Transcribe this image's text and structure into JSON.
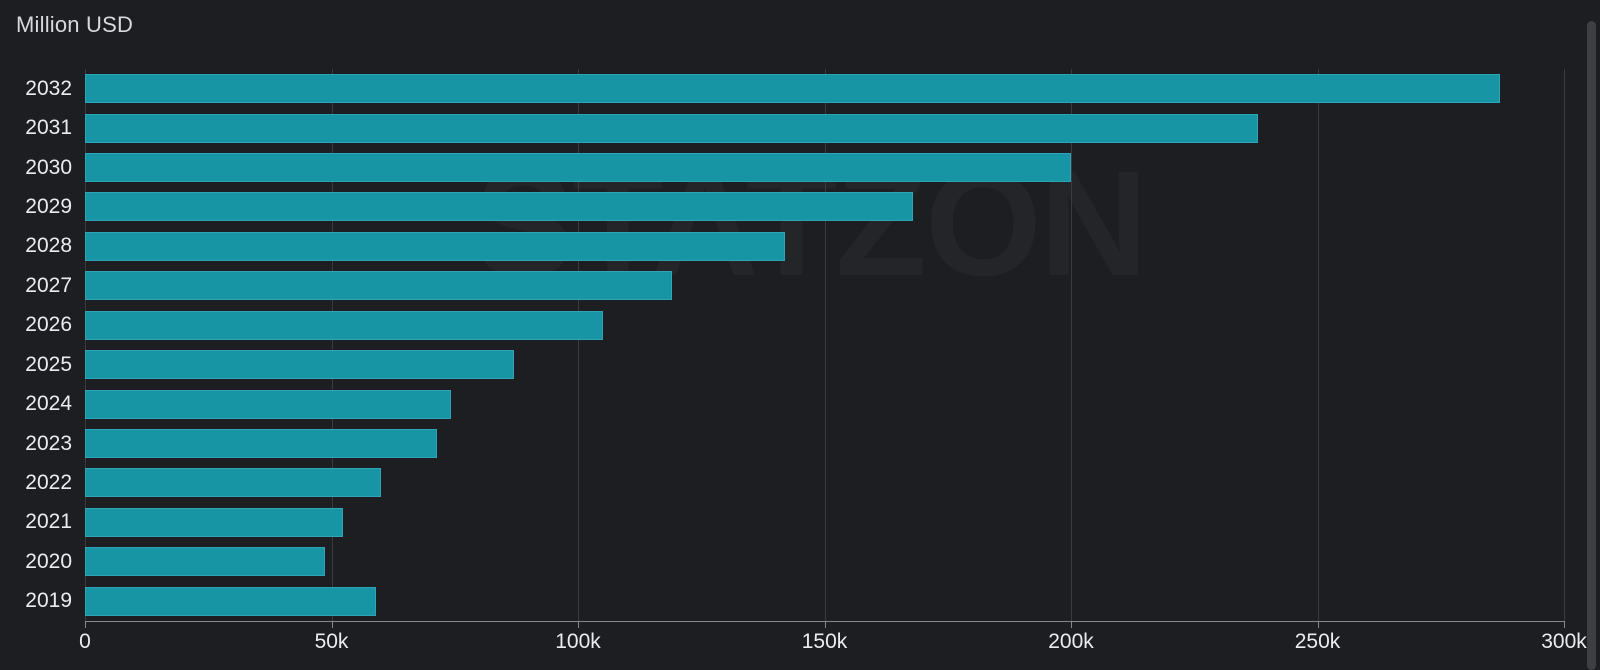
{
  "header": {
    "title": "Million USD"
  },
  "watermark": "STATZON",
  "colors": {
    "background": "#1d1e22",
    "bar": "#1795a5",
    "gridline": "#3a3b40",
    "axis_line": "#87888c",
    "tick_label": "#ebecee",
    "title": "#d8d9db",
    "scrollbar": "#3e3f43"
  },
  "chart_data": {
    "type": "bar",
    "orientation": "horizontal",
    "title": "Million USD",
    "categories": [
      "2032",
      "2031",
      "2030",
      "2029",
      "2028",
      "2027",
      "2026",
      "2025",
      "2024",
      "2023",
      "2022",
      "2021",
      "2020",
      "2019"
    ],
    "values": [
      287000,
      238000,
      200000,
      168000,
      142000,
      119000,
      105000,
      87000,
      74300,
      71400,
      60000,
      52300,
      48600,
      59000
    ],
    "xlabel": "",
    "ylabel": "",
    "xlim": [
      0,
      300000
    ],
    "x_ticks": [
      "0",
      "50k",
      "100k",
      "150k",
      "200k",
      "250k",
      "300k"
    ],
    "x_tick_values": [
      0,
      50000,
      100000,
      150000,
      200000,
      250000,
      300000
    ],
    "grid": "vertical",
    "legend": "none"
  }
}
